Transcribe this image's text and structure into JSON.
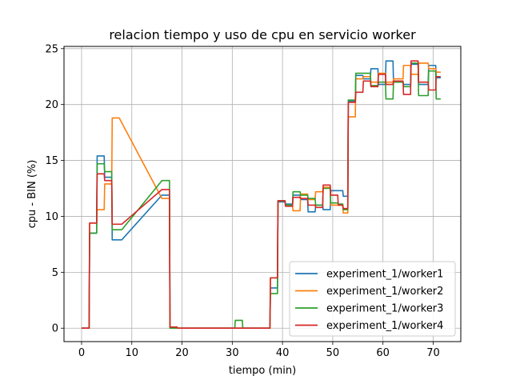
{
  "chart_data": {
    "type": "line",
    "title": "relacion tiempo y uso de cpu en servicio worker",
    "xlabel": "tiempo (min)",
    "ylabel": "cpu - BIN (%)",
    "xlim": [
      -3.5,
      75.5
    ],
    "ylim": [
      -1.2,
      25.2
    ],
    "xticks": [
      0,
      10,
      20,
      30,
      40,
      50,
      60,
      70
    ],
    "yticks": [
      0,
      5,
      10,
      15,
      20,
      25
    ],
    "grid": true,
    "legend_position": "lower right",
    "series": [
      {
        "name": "experiment_1/worker1",
        "color": "#1f77b4",
        "points": [
          [
            0,
            0
          ],
          [
            1.5,
            0
          ],
          [
            1.6,
            8.5
          ],
          [
            3,
            8.5
          ],
          [
            3.1,
            15.4
          ],
          [
            4.5,
            15.4
          ],
          [
            4.6,
            13.5
          ],
          [
            6,
            13.5
          ],
          [
            6.1,
            7.9
          ],
          [
            8,
            7.9
          ],
          [
            16,
            11.9
          ],
          [
            17.5,
            11.9
          ],
          [
            17.6,
            0
          ],
          [
            19,
            0
          ],
          [
            19.1,
            0
          ],
          [
            37.5,
            0
          ],
          [
            37.6,
            3.6
          ],
          [
            39,
            3.6
          ],
          [
            39.1,
            11.3
          ],
          [
            40.5,
            11.3
          ],
          [
            40.6,
            11.1
          ],
          [
            42,
            11.1
          ],
          [
            42.1,
            11.9
          ],
          [
            43.5,
            11.9
          ],
          [
            43.6,
            11.5
          ],
          [
            45,
            11.5
          ],
          [
            45.1,
            10.4
          ],
          [
            46.5,
            10.4
          ],
          [
            46.6,
            11.0
          ],
          [
            48,
            11.0
          ],
          [
            48.1,
            10.6
          ],
          [
            49.5,
            10.6
          ],
          [
            49.6,
            12.3
          ],
          [
            51,
            12.3
          ],
          [
            51.1,
            12.3
          ],
          [
            52,
            12.3
          ],
          [
            52.1,
            11.8
          ],
          [
            53,
            11.8
          ],
          [
            53.1,
            20.3
          ],
          [
            54.5,
            20.3
          ],
          [
            54.6,
            22.6
          ],
          [
            56,
            22.6
          ],
          [
            56.1,
            22.3
          ],
          [
            57.5,
            22.3
          ],
          [
            57.6,
            23.2
          ],
          [
            59,
            23.2
          ],
          [
            59.1,
            21.8
          ],
          [
            60.5,
            21.8
          ],
          [
            60.6,
            23.9
          ],
          [
            62,
            23.9
          ],
          [
            62.1,
            22.0
          ],
          [
            64,
            22.0
          ],
          [
            64.1,
            21.8
          ],
          [
            65.5,
            21.8
          ],
          [
            65.6,
            23.6
          ],
          [
            67,
            23.6
          ],
          [
            67.1,
            21.8
          ],
          [
            69,
            21.8
          ],
          [
            69.1,
            23.5
          ],
          [
            70.5,
            23.5
          ],
          [
            70.6,
            22.4
          ],
          [
            71.5,
            22.4
          ]
        ]
      },
      {
        "name": "experiment_1/worker2",
        "color": "#ff7f0e",
        "points": [
          [
            0,
            0
          ],
          [
            1.5,
            0
          ],
          [
            1.6,
            9.4
          ],
          [
            3,
            9.4
          ],
          [
            3.1,
            10.6
          ],
          [
            4.5,
            10.6
          ],
          [
            4.6,
            12.9
          ],
          [
            6,
            12.9
          ],
          [
            6.1,
            18.8
          ],
          [
            7.5,
            18.8
          ],
          [
            16,
            11.6
          ],
          [
            17.5,
            11.6
          ],
          [
            17.6,
            0.1
          ],
          [
            19,
            0.1
          ],
          [
            19.1,
            0
          ],
          [
            37.5,
            0
          ],
          [
            37.6,
            4.5
          ],
          [
            39,
            4.5
          ],
          [
            39.1,
            11.4
          ],
          [
            40.5,
            11.4
          ],
          [
            40.6,
            11.0
          ],
          [
            42,
            11.0
          ],
          [
            42.1,
            10.5
          ],
          [
            43.5,
            10.5
          ],
          [
            43.6,
            12.0
          ],
          [
            45,
            12.0
          ],
          [
            45.1,
            11.5
          ],
          [
            46.5,
            11.5
          ],
          [
            46.6,
            12.2
          ],
          [
            48,
            12.2
          ],
          [
            48.1,
            12.6
          ],
          [
            49.5,
            12.6
          ],
          [
            49.6,
            11.0
          ],
          [
            51,
            11.0
          ],
          [
            51.1,
            11.0
          ],
          [
            52,
            11.0
          ],
          [
            52.1,
            10.3
          ],
          [
            53,
            10.3
          ],
          [
            53.1,
            18.9
          ],
          [
            54.5,
            18.9
          ],
          [
            54.6,
            22.3
          ],
          [
            56,
            22.3
          ],
          [
            56.1,
            22.5
          ],
          [
            57.5,
            22.5
          ],
          [
            57.6,
            22.0
          ],
          [
            59,
            22.0
          ],
          [
            59.1,
            22.8
          ],
          [
            60.5,
            22.8
          ],
          [
            60.6,
            22.0
          ],
          [
            62,
            22.0
          ],
          [
            62.1,
            22.3
          ],
          [
            64,
            22.3
          ],
          [
            64.1,
            23.5
          ],
          [
            65.5,
            23.5
          ],
          [
            65.6,
            22.7
          ],
          [
            67,
            22.7
          ],
          [
            67.1,
            23.7
          ],
          [
            69,
            23.7
          ],
          [
            69.1,
            23.2
          ],
          [
            70.5,
            23.2
          ],
          [
            70.6,
            22.9
          ],
          [
            71.5,
            22.9
          ]
        ]
      },
      {
        "name": "experiment_1/worker3",
        "color": "#2ca02c",
        "points": [
          [
            0,
            0
          ],
          [
            1.5,
            0
          ],
          [
            1.6,
            8.5
          ],
          [
            3,
            8.5
          ],
          [
            3.1,
            14.7
          ],
          [
            4.5,
            14.7
          ],
          [
            4.6,
            14.0
          ],
          [
            6,
            14.0
          ],
          [
            6.1,
            8.8
          ],
          [
            8,
            8.8
          ],
          [
            16,
            13.2
          ],
          [
            17.5,
            13.2
          ],
          [
            17.6,
            0
          ],
          [
            19,
            0
          ],
          [
            19.1,
            0
          ],
          [
            30.5,
            0
          ],
          [
            30.6,
            0.7
          ],
          [
            32,
            0.7
          ],
          [
            32.1,
            0
          ],
          [
            37.5,
            0
          ],
          [
            37.6,
            3.1
          ],
          [
            39,
            3.1
          ],
          [
            39.1,
            11.4
          ],
          [
            40.5,
            11.4
          ],
          [
            40.6,
            11.0
          ],
          [
            42,
            11.0
          ],
          [
            42.1,
            12.2
          ],
          [
            43.5,
            12.2
          ],
          [
            43.6,
            11.9
          ],
          [
            45,
            11.9
          ],
          [
            45.1,
            11.6
          ],
          [
            46.5,
            11.6
          ],
          [
            46.6,
            11.0
          ],
          [
            48,
            11.0
          ],
          [
            48.1,
            12.5
          ],
          [
            49.5,
            12.5
          ],
          [
            49.6,
            11.2
          ],
          [
            51,
            11.2
          ],
          [
            51.1,
            11.1
          ],
          [
            52,
            11.1
          ],
          [
            52.1,
            10.6
          ],
          [
            53,
            10.6
          ],
          [
            53.1,
            20.4
          ],
          [
            54.5,
            20.4
          ],
          [
            54.6,
            22.8
          ],
          [
            56,
            22.8
          ],
          [
            56.1,
            22.8
          ],
          [
            57.5,
            22.8
          ],
          [
            57.6,
            21.7
          ],
          [
            59,
            21.7
          ],
          [
            59.1,
            22.0
          ],
          [
            60.5,
            22.0
          ],
          [
            60.6,
            20.5
          ],
          [
            62,
            20.5
          ],
          [
            62.1,
            22.0
          ],
          [
            64,
            22.0
          ],
          [
            64.1,
            21.6
          ],
          [
            65.5,
            21.6
          ],
          [
            65.6,
            23.7
          ],
          [
            67,
            23.7
          ],
          [
            67.1,
            20.8
          ],
          [
            69,
            20.8
          ],
          [
            69.1,
            23.0
          ],
          [
            70.5,
            23.0
          ],
          [
            70.6,
            20.5
          ],
          [
            71.5,
            20.5
          ]
        ]
      },
      {
        "name": "experiment_1/worker4",
        "color": "#d62728",
        "points": [
          [
            0,
            0
          ],
          [
            1.5,
            0
          ],
          [
            1.6,
            9.4
          ],
          [
            3,
            9.4
          ],
          [
            3.1,
            13.8
          ],
          [
            4.5,
            13.8
          ],
          [
            4.6,
            13.2
          ],
          [
            6,
            13.2
          ],
          [
            6.1,
            9.3
          ],
          [
            8,
            9.3
          ],
          [
            16,
            12.4
          ],
          [
            17.5,
            12.4
          ],
          [
            17.6,
            0.1
          ],
          [
            19,
            0.1
          ],
          [
            19.1,
            0
          ],
          [
            37.5,
            0
          ],
          [
            37.6,
            4.5
          ],
          [
            39,
            4.5
          ],
          [
            39.1,
            11.4
          ],
          [
            40.5,
            11.4
          ],
          [
            40.6,
            10.9
          ],
          [
            42,
            10.9
          ],
          [
            42.1,
            11.7
          ],
          [
            43.5,
            11.7
          ],
          [
            43.6,
            11.6
          ],
          [
            45,
            11.6
          ],
          [
            45.1,
            11.0
          ],
          [
            46.5,
            11.0
          ],
          [
            46.6,
            10.8
          ],
          [
            48,
            10.8
          ],
          [
            48.1,
            12.8
          ],
          [
            49.5,
            12.8
          ],
          [
            49.6,
            11.9
          ],
          [
            51,
            11.9
          ],
          [
            51.1,
            11.0
          ],
          [
            52,
            11.0
          ],
          [
            52.1,
            10.7
          ],
          [
            53,
            10.7
          ],
          [
            53.1,
            20.2
          ],
          [
            54.5,
            20.2
          ],
          [
            54.6,
            21.1
          ],
          [
            56,
            21.1
          ],
          [
            56.1,
            22.1
          ],
          [
            57.5,
            22.1
          ],
          [
            57.6,
            21.6
          ],
          [
            59,
            21.6
          ],
          [
            59.1,
            22.7
          ],
          [
            60.5,
            22.7
          ],
          [
            60.6,
            21.8
          ],
          [
            62,
            21.8
          ],
          [
            62.1,
            22.1
          ],
          [
            64,
            22.1
          ],
          [
            64.1,
            20.9
          ],
          [
            65.5,
            20.9
          ],
          [
            65.6,
            23.9
          ],
          [
            67,
            23.9
          ],
          [
            67.1,
            22.0
          ],
          [
            69,
            22.0
          ],
          [
            69.1,
            21.3
          ],
          [
            70.5,
            21.3
          ],
          [
            70.6,
            22.5
          ],
          [
            71.5,
            22.5
          ]
        ]
      }
    ]
  }
}
